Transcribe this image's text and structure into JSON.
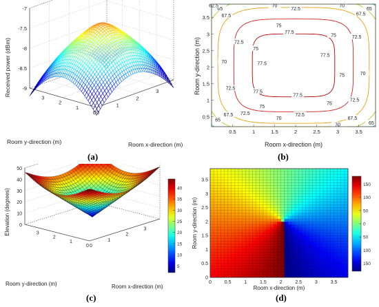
{
  "panels": {
    "a": "(a)",
    "b": "(b)",
    "c": "(c)",
    "d": "(d)"
  },
  "chart_data": [
    {
      "id": "a",
      "type": "surface3d",
      "zlabel": "Received power (dBm)",
      "xlabel": "Room x-direction (m)",
      "ylabel": "Room y-direction (m)",
      "z_ticks": [
        "-7",
        "-7.5",
        "-8",
        "-8.5",
        "-9"
      ],
      "x_ticks": [
        "0",
        "1",
        "2",
        "3"
      ],
      "y_ticks": [
        "0",
        "1",
        "2",
        "3"
      ],
      "zlim": [
        -9,
        -7
      ],
      "peak_value": -7.6,
      "corner_value": -9.2,
      "colormap": "jet"
    },
    {
      "id": "b",
      "type": "contour",
      "xlabel": "Room x-direction (m)",
      "ylabel": "Room y-direction (m)",
      "x_ticks": [
        "0.5",
        "1",
        "1.5",
        "2",
        "2.5",
        "3",
        "3.5"
      ],
      "y_ticks": [
        "0.5",
        "1",
        "1.5",
        "2",
        "2.5",
        "3",
        "3.5"
      ],
      "xlim": [
        0,
        3.9
      ],
      "ylim": [
        0.2,
        3.9
      ],
      "levels": [
        62.5,
        65,
        67.5,
        70,
        72.5,
        75,
        77.5
      ],
      "level_labels": [
        "62.5",
        "65",
        "67.5",
        "70",
        "72.5",
        "75",
        "77.5"
      ]
    },
    {
      "id": "c",
      "type": "surface3d",
      "zlabel": "Elevation (degrees)",
      "xlabel": "Room x-direction (m)",
      "ylabel": "Room y-direction (m)",
      "z_ticks": [
        "0",
        "10",
        "20",
        "30",
        "40",
        "50"
      ],
      "x_ticks": [
        "0",
        "1",
        "2",
        "3"
      ],
      "y_ticks": [
        "0",
        "1",
        "2",
        "3"
      ],
      "zlim": [
        0,
        50
      ],
      "colorbar_ticks": [
        "5",
        "10",
        "15",
        "20",
        "25",
        "30",
        "35",
        "40"
      ],
      "colormap": "jet"
    },
    {
      "id": "d",
      "type": "heatmap",
      "xlabel": "Room x-direction (m)",
      "ylabel": "Room y-direction (m)",
      "x_ticks": [
        "0",
        "0.5",
        "1",
        "1.5",
        "2",
        "2.5",
        "3",
        "3.5"
      ],
      "y_ticks": [
        "0",
        "0.5",
        "1",
        "1.5",
        "2",
        "2.5",
        "3",
        "3.5"
      ],
      "xlim": [
        0,
        3.9
      ],
      "ylim": [
        0,
        3.9
      ],
      "center": [
        2.05,
        2.05
      ],
      "colorbar_ticks": [
        "150",
        "100",
        "50",
        "0",
        "50",
        "100",
        "150"
      ],
      "value_range": [
        -180,
        180
      ],
      "colormap": "jet"
    }
  ]
}
